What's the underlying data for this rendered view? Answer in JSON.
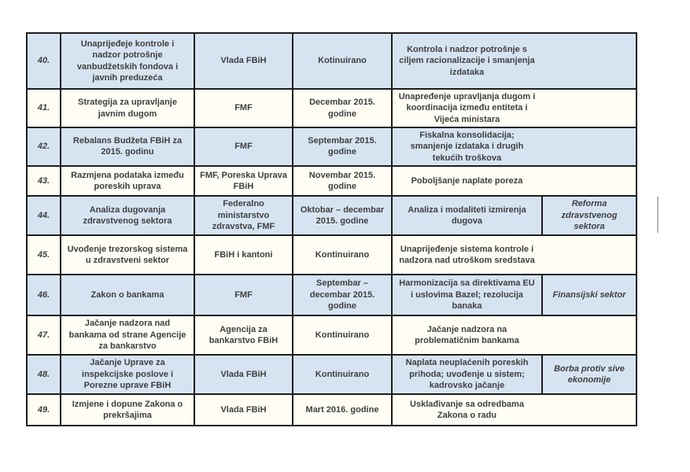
{
  "table": {
    "colors": {
      "row_blue": "#d6e4f2",
      "row_cream": "#fffdf4",
      "border": "#1d1d1d",
      "text": "#3f3f3f"
    },
    "columns": [
      "number",
      "measure",
      "institution",
      "deadline",
      "result",
      "category"
    ],
    "rows": [
      {
        "number": "40.",
        "measure": "Unaprijeđeje kontrole i nadzor potrošnje vanbudžetskih fondova i javnih preduzeća",
        "institution": "Vlada FBiH",
        "deadline": "Kotinuirano",
        "result": "Kontrola i nadzor potrošnje s ciljem racionalizacije i smanjenja izdataka",
        "category": ""
      },
      {
        "number": "41.",
        "measure": "Strategija za upravljanje javnim dugom",
        "institution": "FMF",
        "deadline": "Decembar 2015. godine",
        "result": "Unapređenje upravljanja dugom i koordinacija između entiteta i Vijeća ministara",
        "category": ""
      },
      {
        "number": "42.",
        "measure": "Rebalans Budžeta FBiH za 2015. godinu",
        "institution": "FMF",
        "deadline": "Septembar 2015. godine",
        "result": "Fiskalna konsolidacija; smanjenje izdataka i drugih tekućih troškova",
        "category": ""
      },
      {
        "number": "43.",
        "measure": "Razmjena podataka između poreskih uprava",
        "institution": "FMF, Poreska Uprava FBiH",
        "deadline": "Novembar 2015. godine",
        "result": "Poboljšanje naplate poreza",
        "category": ""
      },
      {
        "number": "44.",
        "measure": "Analiza dugovanja zdravstvenog sektora",
        "institution": "Federalno ministarstvo zdravstva, FMF",
        "deadline": "Oktobar – decembar 2015. godine",
        "result": "Analiza i modaliteti izmirenja dugova",
        "category": "Reforma zdravstvenog sektora"
      },
      {
        "number": "45.",
        "measure": "Uvođenje trezorskog sistema u zdravstveni sektor",
        "institution": "FBiH i kantoni",
        "deadline": "Kontinuirano",
        "result": "Unaprijeđenje sistema kontrole i nadzora nad utroškom sredstava",
        "category": ""
      },
      {
        "number": "46.",
        "measure": "Zakon o bankama",
        "institution": "FMF",
        "deadline": "Septembar – decembar 2015. godine",
        "result": "Harmonizacija sa direktivama EU i uslovima Bazel; rezolucija banaka",
        "category": "Finansijski sektor"
      },
      {
        "number": "47.",
        "measure": "Jačanje nadzora nad bankama od strane Agencije za bankarstvo",
        "institution": "Agencija za bankarstvo FBiH",
        "deadline": "Kontinuirano",
        "result": "Jačanje nadzora na problematičnim bankama",
        "category": ""
      },
      {
        "number": "48.",
        "measure": "Jačanje Uprave za inspekcijske poslove i Porezne uprave FBiH",
        "institution": "Vlada FBiH",
        "deadline": "Kontinuirano",
        "result": "Naplata neuplaćenih poreskih prihoda; uvođenje u sistem; kadrovsko jačanje",
        "category": "Borba protiv sive ekonomije"
      },
      {
        "number": "49.",
        "measure": "Izmjene i dopune Zakona o prekršajima",
        "institution": "Vlada FBiH",
        "deadline": "Mart 2016. godine",
        "result": "Usklađivanje sa odredbama Zakona o radu",
        "category": ""
      }
    ]
  }
}
